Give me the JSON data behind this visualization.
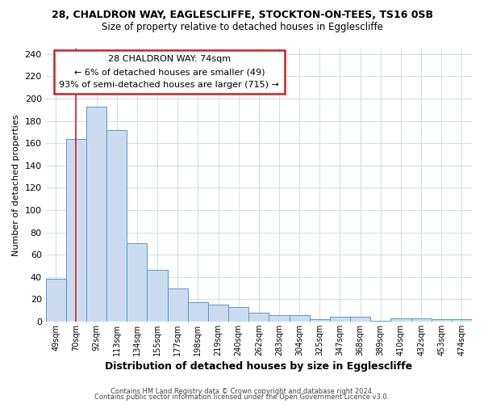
{
  "title1": "28, CHALDRON WAY, EAGLESCLIFFE, STOCKTON-ON-TEES, TS16 0SB",
  "title2": "Size of property relative to detached houses in Egglescliffe",
  "xlabel": "Distribution of detached houses by size in Egglescliffe",
  "ylabel": "Number of detached properties",
  "categories": [
    "49sqm",
    "70sqm",
    "92sqm",
    "113sqm",
    "134sqm",
    "155sqm",
    "177sqm",
    "198sqm",
    "219sqm",
    "240sqm",
    "262sqm",
    "283sqm",
    "304sqm",
    "325sqm",
    "347sqm",
    "368sqm",
    "389sqm",
    "410sqm",
    "432sqm",
    "453sqm",
    "474sqm"
  ],
  "values": [
    38,
    164,
    193,
    172,
    70,
    46,
    30,
    17,
    15,
    13,
    8,
    6,
    6,
    2,
    4,
    4,
    1,
    3,
    3,
    2,
    2
  ],
  "bar_color": "#ccdcee",
  "bar_edge_color": "#5599cc",
  "red_line_x": 1,
  "annotation_line1": "28 CHALDRON WAY: 74sqm",
  "annotation_line2": "← 6% of detached houses are smaller (49)",
  "annotation_line3": "93% of semi-detached houses are larger (715) →",
  "annotation_box_color": "#ffffff",
  "annotation_box_edge": "#cc2222",
  "footer1": "Contains HM Land Registry data © Crown copyright and database right 2024.",
  "footer2": "Contains public sector information licensed under the Open Government Licence v3.0.",
  "ylim": [
    0,
    245
  ],
  "yticks": [
    0,
    20,
    40,
    60,
    80,
    100,
    120,
    140,
    160,
    180,
    200,
    220,
    240
  ],
  "grid_color": "#d0dcea",
  "bg_color": "#ffffff"
}
